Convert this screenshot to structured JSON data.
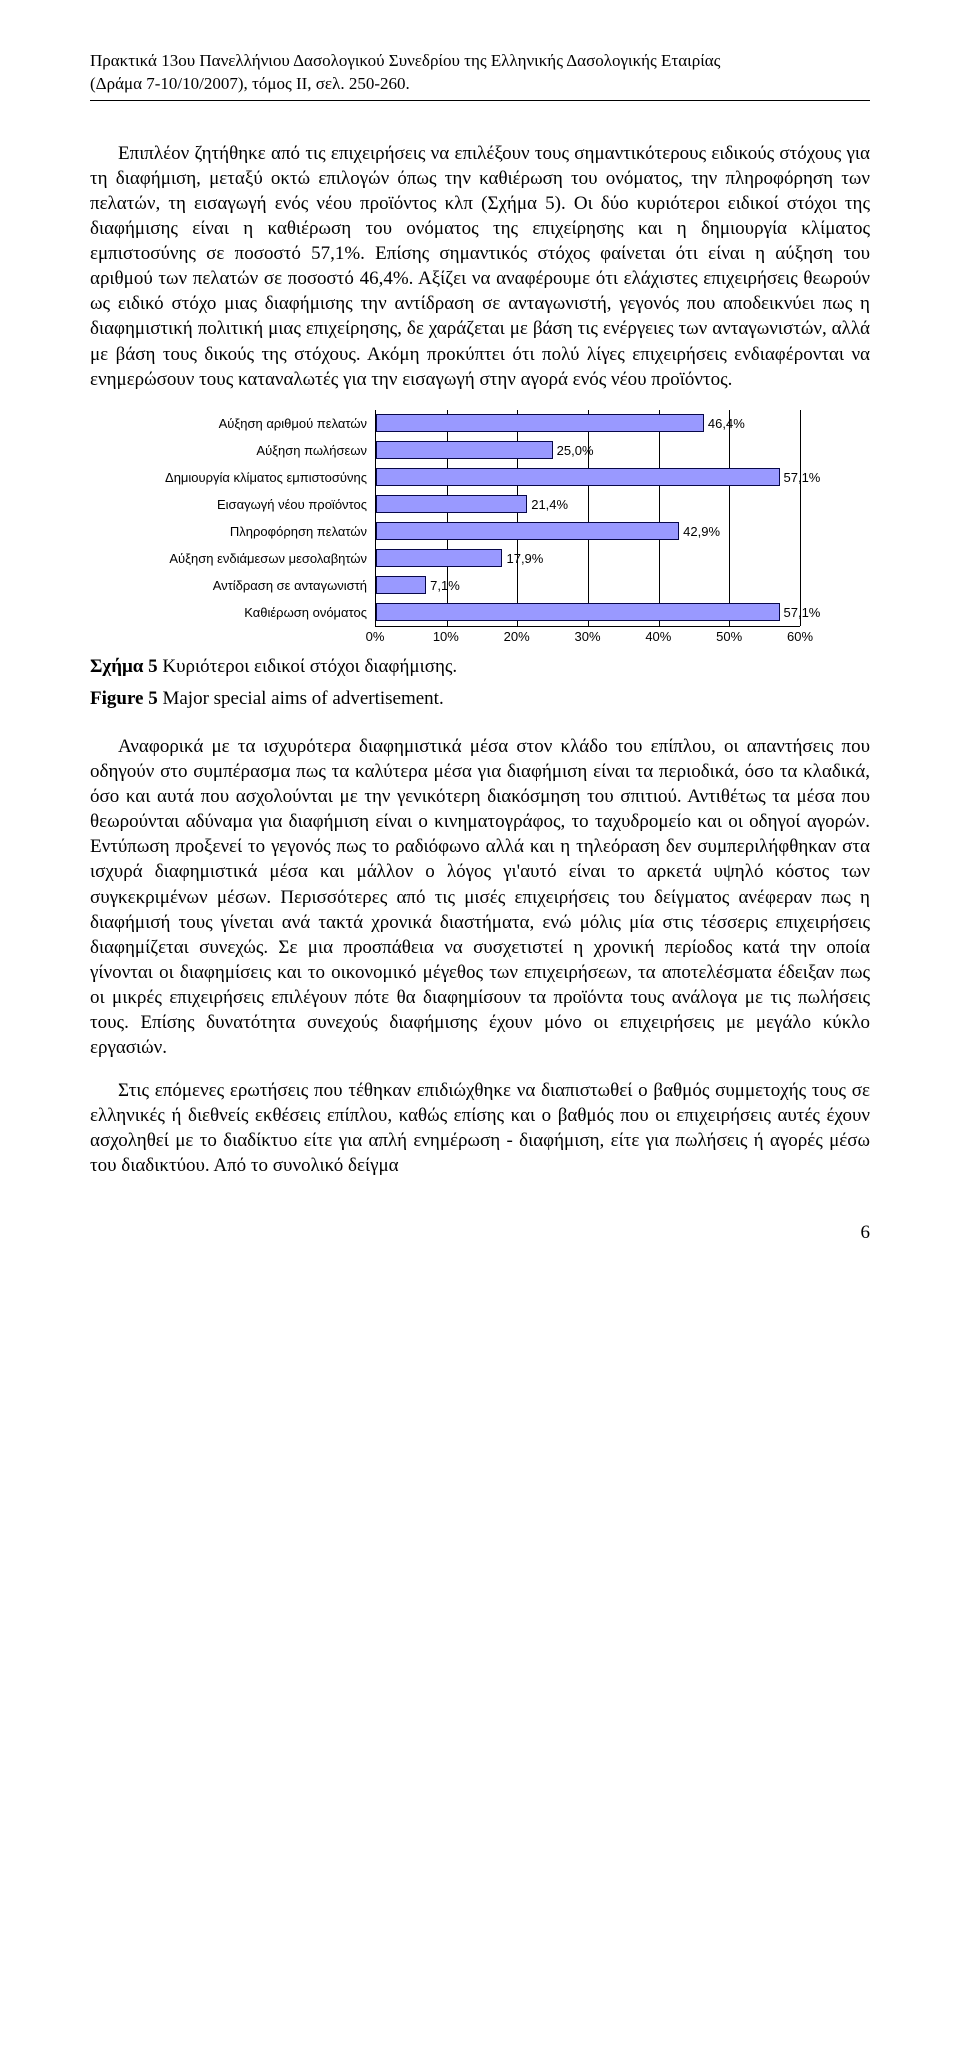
{
  "header": {
    "line1": "Πρακτικά 13ου Πανελλήνιου Δασολογικού Συνεδρίου της Ελληνικής Δασολογικής Εταιρίας",
    "line2": "(Δράμα 7-10/10/2007), τόμος ΙΙ, σελ. 250-260."
  },
  "para1": "Επιπλέον ζητήθηκε από τις επιχειρήσεις να επιλέξουν τους σημαντικότερους ειδικούς στόχους για τη διαφήμιση, μεταξύ οκτώ επιλογών όπως την καθιέρωση του ονόματος, την πληροφόρηση των πελατών, τη εισαγωγή ενός νέου προϊόντος κλπ (Σχήμα 5). Οι δύο κυριότεροι ειδικοί στόχοι της διαφήμισης είναι η καθιέρωση του ονόματος της επιχείρησης και η δημιουργία κλίματος εμπιστοσύνης σε ποσοστό 57,1%. Επίσης σημαντικός στόχος φαίνεται ότι είναι η αύξηση του αριθμού των πελατών σε ποσοστό 46,4%. Αξίζει να αναφέρουμε ότι ελάχιστες επιχειρήσεις θεωρούν ως ειδικό στόχο μιας διαφήμισης την αντίδραση σε ανταγωνιστή, γεγονός που αποδεικνύει πως η διαφημιστική πολιτική μιας επιχείρησης, δε χαράζεται με βάση τις ενέργειες των ανταγωνιστών, αλλά με βάση τους δικούς της στόχους. Ακόμη προκύπτει ότι πολύ λίγες επιχειρήσεις ενδιαφέρονται να ενημερώσουν τους καταναλωτές για την εισαγωγή στην αγορά ενός νέου προϊόντος.",
  "chart": {
    "type": "horizontal-bar",
    "x_min": 0,
    "x_max": 60,
    "x_tick_step": 10,
    "x_ticks": [
      "0%",
      "10%",
      "20%",
      "30%",
      "40%",
      "50%",
      "60%"
    ],
    "bar_color": "#9999ff",
    "bar_border_color": "#070748",
    "grid_color": "#000000",
    "bg_color": "#ffffff",
    "label_font": "Arial",
    "label_fontsize": 13,
    "rows": [
      {
        "label": "Αύξηση αριθμού πελατών",
        "value": 46.4,
        "value_label": "46,4%"
      },
      {
        "label": "Αύξηση πωλήσεων",
        "value": 25.0,
        "value_label": "25,0%"
      },
      {
        "label": "Δημιουργία κλίματος εμπιστοσύνης",
        "value": 57.1,
        "value_label": "57,1%"
      },
      {
        "label": "Εισαγωγή νέου προϊόντος",
        "value": 21.4,
        "value_label": "21,4%"
      },
      {
        "label": "Πληροφόρηση πελατών",
        "value": 42.9,
        "value_label": "42,9%"
      },
      {
        "label": "Αύξηση ενδιάμεσων μεσολαβητών",
        "value": 17.9,
        "value_label": "17,9%"
      },
      {
        "label": "Αντίδραση σε ανταγωνιστή",
        "value": 7.1,
        "value_label": "7,1%"
      },
      {
        "label": "Καθιέρωση ονόματος",
        "value": 57.1,
        "value_label": "57,1%"
      }
    ]
  },
  "caption": {
    "greek_prefix": "Σχήμα 5",
    "greek_rest": " Κυριότεροι ειδικοί στόχοι διαφήμισης.",
    "english_prefix": "Figure 5",
    "english_rest": " Major special aims of advertisement."
  },
  "para2": "Αναφορικά με τα ισχυρότερα διαφημιστικά μέσα στον κλάδο του επίπλου, οι απαντήσεις που οδηγούν στο συμπέρασμα πως τα καλύτερα μέσα για διαφήμιση είναι τα περιοδικά, όσο τα κλαδικά, όσο και αυτά που ασχολούνται με την γενικότερη διακόσμηση του σπιτιού. Αντιθέτως τα μέσα που θεωρούνται αδύναμα για διαφήμιση είναι ο κινηματογράφος, το ταχυδρομείο και οι οδηγοί αγορών. Εντύπωση προξενεί το γεγονός πως το ραδιόφωνο αλλά και η τηλεόραση δεν συμπεριλήφθηκαν στα ισχυρά διαφημιστικά μέσα και μάλλον ο λόγος γι'αυτό είναι το αρκετά υψηλό κόστος των συγκεκριμένων μέσων. Περισσότερες από τις μισές επιχειρήσεις του δείγματος ανέφεραν πως η διαφήμισή τους γίνεται ανά τακτά χρονικά διαστήματα, ενώ μόλις μία στις τέσσερις επιχειρήσεις διαφημίζεται συνεχώς. Σε μια προσπάθεια να συσχετιστεί η χρονική περίοδος κατά την οποία γίνονται οι διαφημίσεις και το οικονομικό μέγεθος των επιχειρήσεων, τα αποτελέσματα έδειξαν πως οι μικρές επιχειρήσεις επιλέγουν πότε θα διαφημίσουν τα προϊόντα τους ανάλογα με τις πωλήσεις τους. Επίσης δυνατότητα συνεχούς διαφήμισης έχουν μόνο οι επιχειρήσεις με μεγάλο κύκλο εργασιών.",
  "para3": "Στις επόμενες ερωτήσεις που τέθηκαν επιδιώχθηκε να διαπιστωθεί ο βαθμός συμμετοχής τους σε ελληνικές ή διεθνείς εκθέσεις επίπλου, καθώς επίσης και ο βαθμός που οι επιχειρήσεις αυτές έχουν ασχοληθεί με το διαδίκτυο είτε για απλή ενημέρωση - διαφήμιση, είτε για πωλήσεις ή αγορές μέσω του διαδικτύου. Από το συνολικό δείγμα",
  "page_number": "6"
}
